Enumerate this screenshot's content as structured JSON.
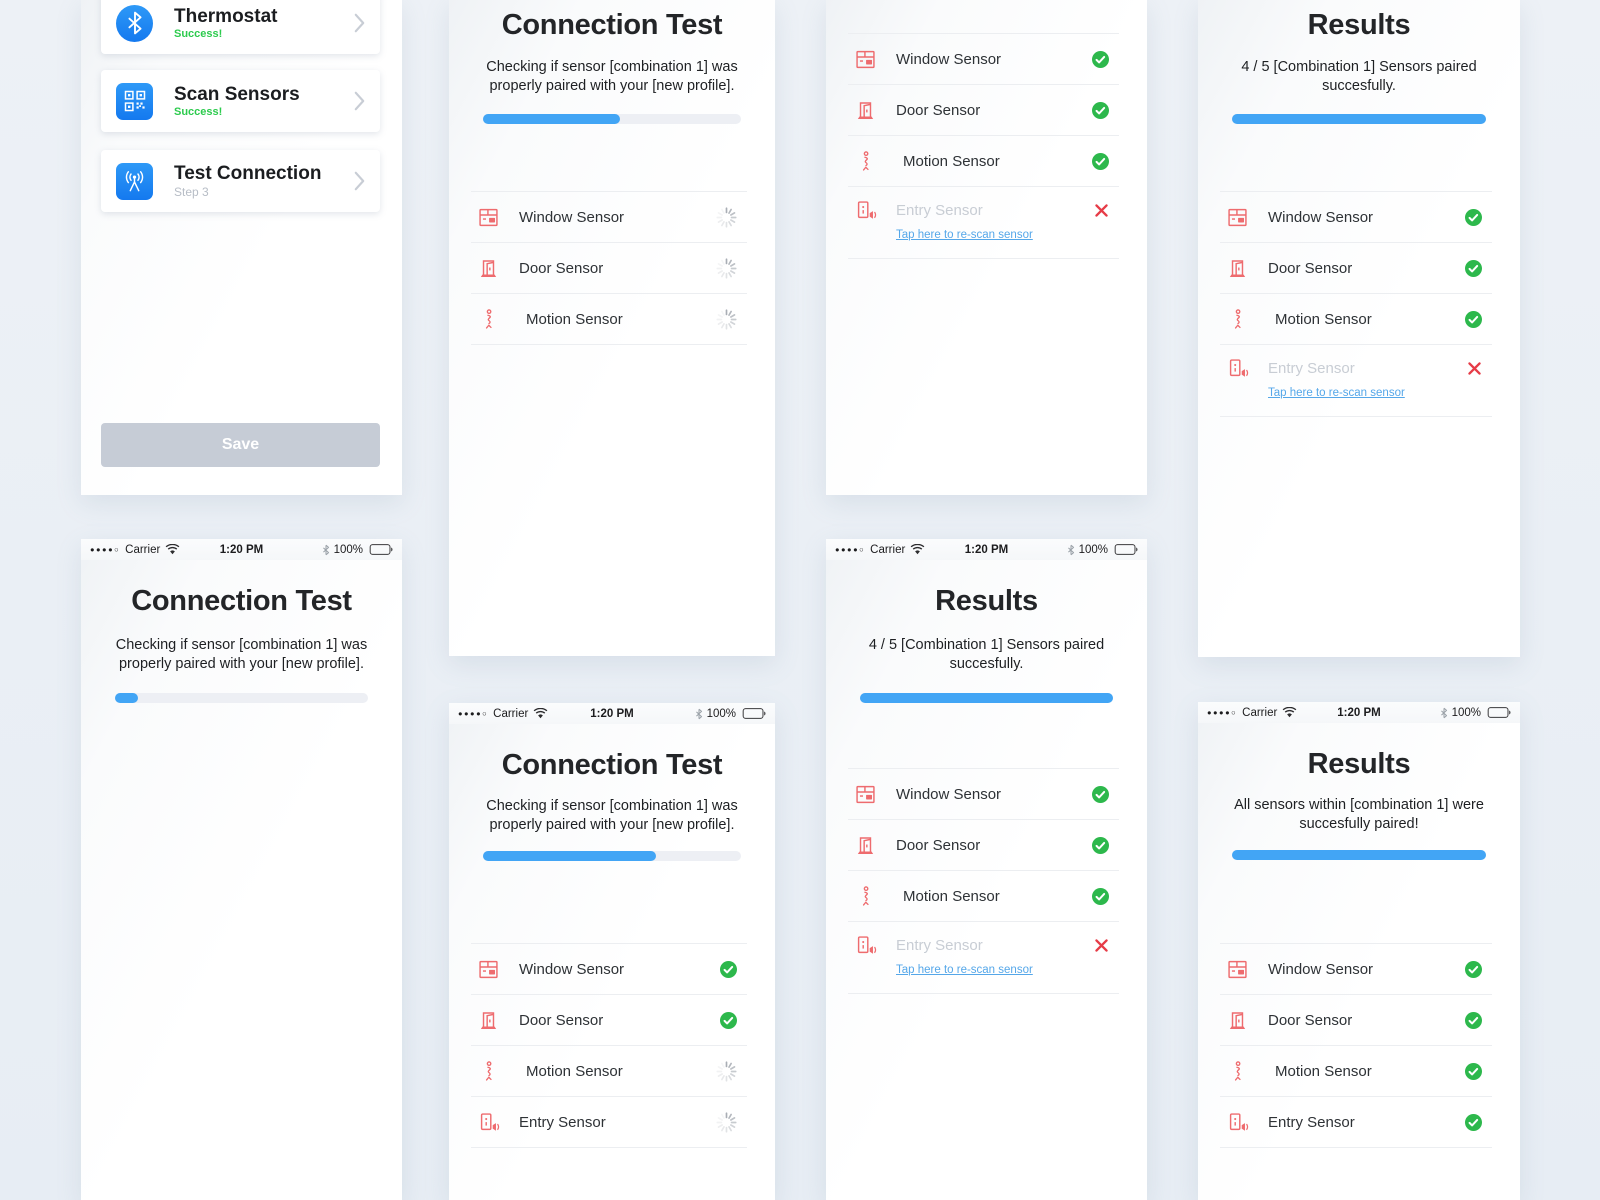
{
  "colors": {
    "accent_blue": "#42A5F5",
    "sensor_icon_red": "#EE6B6E",
    "success_green": "#2DB84C",
    "fail_red": "#E63B47",
    "link_blue": "#55A7E9",
    "card_icon_blue": "#2193F3"
  },
  "status_bar": {
    "signal": "●●●●○",
    "carrier": "Carrier",
    "time": "1:20 PM",
    "battery": "100%"
  },
  "steps": {
    "thermostat": {
      "title": "Thermostat",
      "subtitle": "Success!"
    },
    "scan": {
      "title": "Scan Sensors",
      "subtitle": "Success!"
    },
    "test": {
      "title": "Test Connection",
      "subtitle": "Step 3"
    },
    "save": "Save"
  },
  "connection_test": {
    "title": "Connection Test",
    "description": "Checking if sensor [combination 1] was properly paired with your [new profile]."
  },
  "results": {
    "title": "Results",
    "partial": "4 / 5 [Combination 1] Sensors paired succesfully.",
    "complete": "All sensors within [combination 1] were succesfully paired!"
  },
  "sensors": {
    "window": "Window Sensor",
    "door": "Door Sensor",
    "motion": "Motion Sensor",
    "entry": "Entry Sensor"
  },
  "links": {
    "rescan": "Tap here to re-scan sensor"
  },
  "progress": {
    "start_pct": 9,
    "mid_pct": 53,
    "late_pct": 67,
    "full_pct": 100
  }
}
